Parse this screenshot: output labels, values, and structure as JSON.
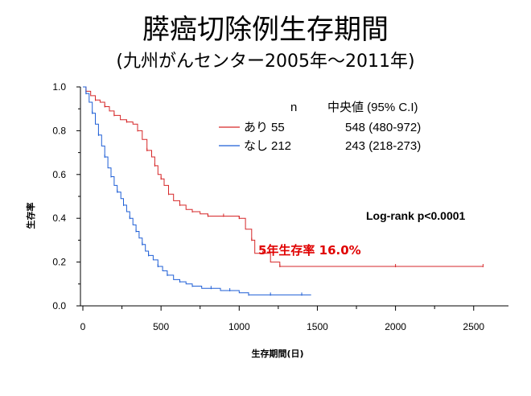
{
  "title": "膵癌切除例生存期間",
  "subtitle": "(九州がんセンター2005年〜2011年)",
  "chart_data": {
    "type": "line",
    "title": "膵癌切除例生存期間",
    "xlabel": "生存期間(日)",
    "ylabel": "生存率",
    "xlim": [
      0,
      2700
    ],
    "ylim": [
      0,
      1.0
    ],
    "xticks": [
      "0",
      "500",
      "1000",
      "1500",
      "2000",
      "2500"
    ],
    "yticks": [
      "0.0",
      "0.2",
      "0.4",
      "0.6",
      "0.8",
      "1.0"
    ],
    "xtick_values": [
      0,
      500,
      1000,
      1500,
      2000,
      2500
    ],
    "ytick_values": [
      0,
      0.2,
      0.4,
      0.6,
      0.8,
      1.0
    ],
    "legend_header": {
      "n": "n",
      "median": "中央値 (95% C.I)"
    },
    "series": [
      {
        "name": "あり",
        "n": "55",
        "median": "548 (480-972)",
        "color": "#d62728",
        "x": [
          0,
          20,
          50,
          80,
          110,
          140,
          170,
          200,
          240,
          280,
          320,
          350,
          380,
          410,
          440,
          460,
          480,
          500,
          520,
          548,
          580,
          620,
          660,
          700,
          750,
          800,
          850,
          900,
          950,
          1000,
          1040,
          1080,
          1100,
          1150,
          1200,
          1260,
          1600,
          2000,
          2300,
          2560
        ],
        "y": [
          1.0,
          0.98,
          0.96,
          0.94,
          0.93,
          0.91,
          0.89,
          0.87,
          0.85,
          0.84,
          0.83,
          0.8,
          0.76,
          0.71,
          0.68,
          0.64,
          0.6,
          0.58,
          0.55,
          0.51,
          0.48,
          0.46,
          0.44,
          0.43,
          0.42,
          0.41,
          0.41,
          0.41,
          0.41,
          0.4,
          0.35,
          0.3,
          0.24,
          0.24,
          0.2,
          0.18,
          0.18,
          0.18,
          0.18,
          0.18
        ]
      },
      {
        "name": "なし",
        "n": "212",
        "median": "243 (218-273)",
        "color": "#1f5fd6",
        "x": [
          0,
          20,
          40,
          60,
          80,
          100,
          120,
          140,
          160,
          180,
          200,
          220,
          243,
          260,
          280,
          300,
          320,
          340,
          360,
          380,
          400,
          420,
          450,
          480,
          510,
          540,
          580,
          620,
          660,
          700,
          760,
          820,
          880,
          940,
          1000,
          1060,
          1100,
          1200,
          1300,
          1400,
          1460
        ],
        "y": [
          1.0,
          0.97,
          0.93,
          0.88,
          0.83,
          0.78,
          0.73,
          0.68,
          0.63,
          0.59,
          0.55,
          0.52,
          0.49,
          0.46,
          0.43,
          0.4,
          0.37,
          0.34,
          0.31,
          0.28,
          0.25,
          0.23,
          0.21,
          0.18,
          0.16,
          0.14,
          0.12,
          0.11,
          0.1,
          0.09,
          0.08,
          0.08,
          0.07,
          0.07,
          0.06,
          0.05,
          0.05,
          0.05,
          0.05,
          0.05,
          0.05
        ]
      }
    ],
    "annotations": {
      "logrank": "Log-rank  p<0.0001",
      "five_year": "5年生存率  16.0%"
    },
    "grid": false,
    "legend_position": "top-right"
  }
}
